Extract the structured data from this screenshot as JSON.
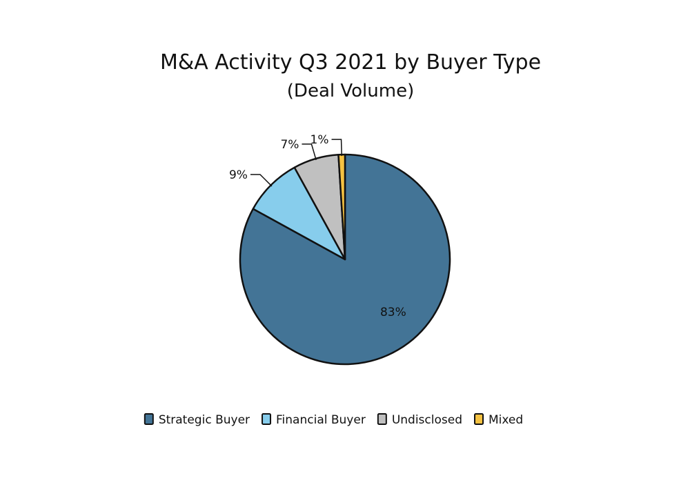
{
  "chart_data": {
    "type": "pie",
    "title": "M&A Activity Q3 2021 by Buyer Type",
    "subtitle": "(Deal Volume)",
    "legend_position": "bottom",
    "slices": [
      {
        "label": "Strategic Buyer",
        "value": 83,
        "display": "83%",
        "color": "#437496"
      },
      {
        "label": "Financial Buyer",
        "value": 9,
        "display": "9%",
        "color": "#87cdec"
      },
      {
        "label": "Undisclosed",
        "value": 7,
        "display": "7%",
        "color": "#c0c0c0"
      },
      {
        "label": "Mixed",
        "value": 1,
        "display": "1%",
        "color": "#f5c242"
      }
    ]
  }
}
